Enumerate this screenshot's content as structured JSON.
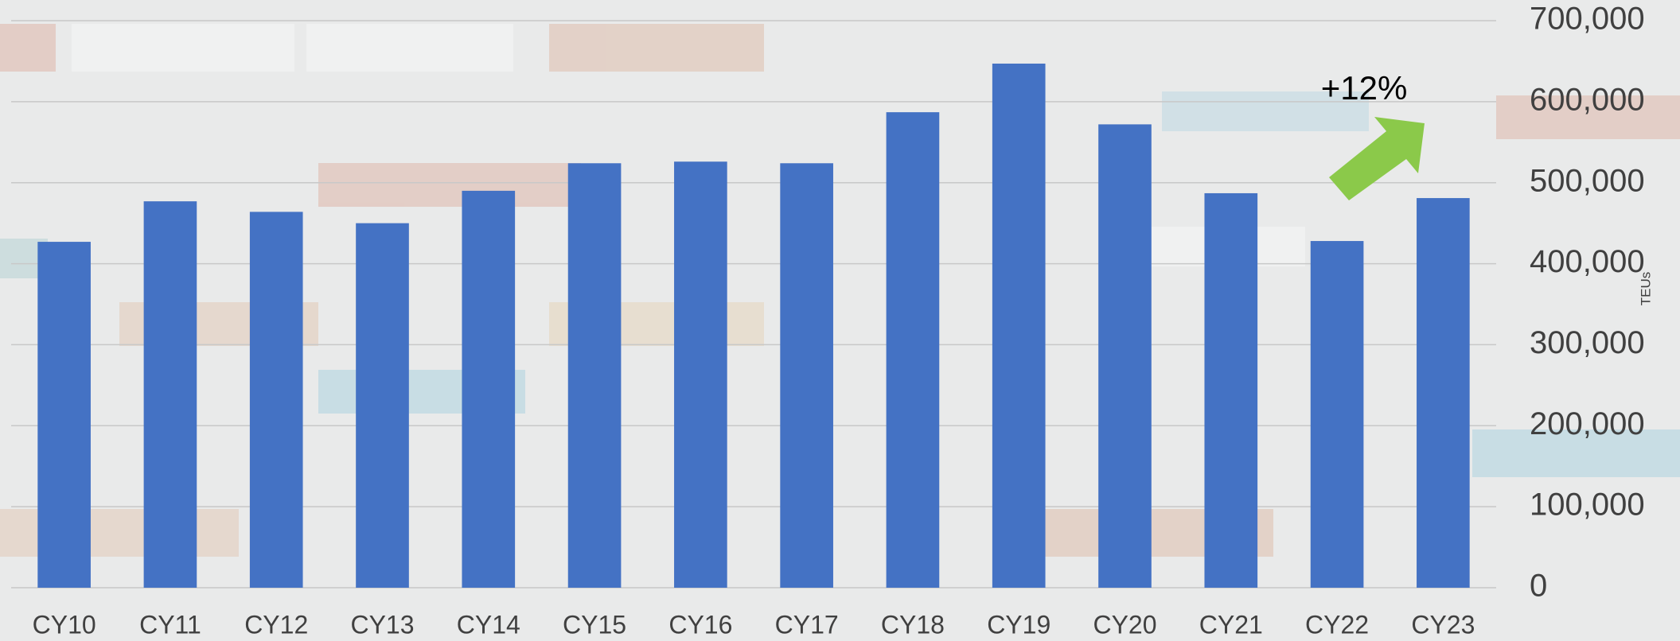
{
  "chart_data": {
    "type": "bar",
    "categories": [
      "CY10",
      "CY11",
      "CY12",
      "CY13",
      "CY14",
      "CY15",
      "CY16",
      "CY17",
      "CY18",
      "CY19",
      "CY20",
      "CY21",
      "CY22",
      "CY23"
    ],
    "values": [
      427000,
      477000,
      464000,
      450000,
      490000,
      524000,
      526000,
      524000,
      587000,
      647000,
      572000,
      487000,
      428000,
      481000
    ],
    "color": "#4472c4",
    "ylim": [
      0,
      700000
    ],
    "yticks": [
      0,
      {
        "value": 100000,
        "label": "100,000"
      },
      {
        "value": 200000,
        "label": "200,000"
      },
      {
        "value": 300000,
        "label": "300,000"
      },
      {
        "value": 400000,
        "label": "400,000"
      },
      {
        "value": 500000,
        "label": "500,000"
      },
      {
        "value": 600000,
        "label": "600,000"
      },
      {
        "value": 700000,
        "label": "700,000"
      }
    ],
    "grid": true,
    "y_label": "TEUs",
    "annotation": "+12%"
  }
}
